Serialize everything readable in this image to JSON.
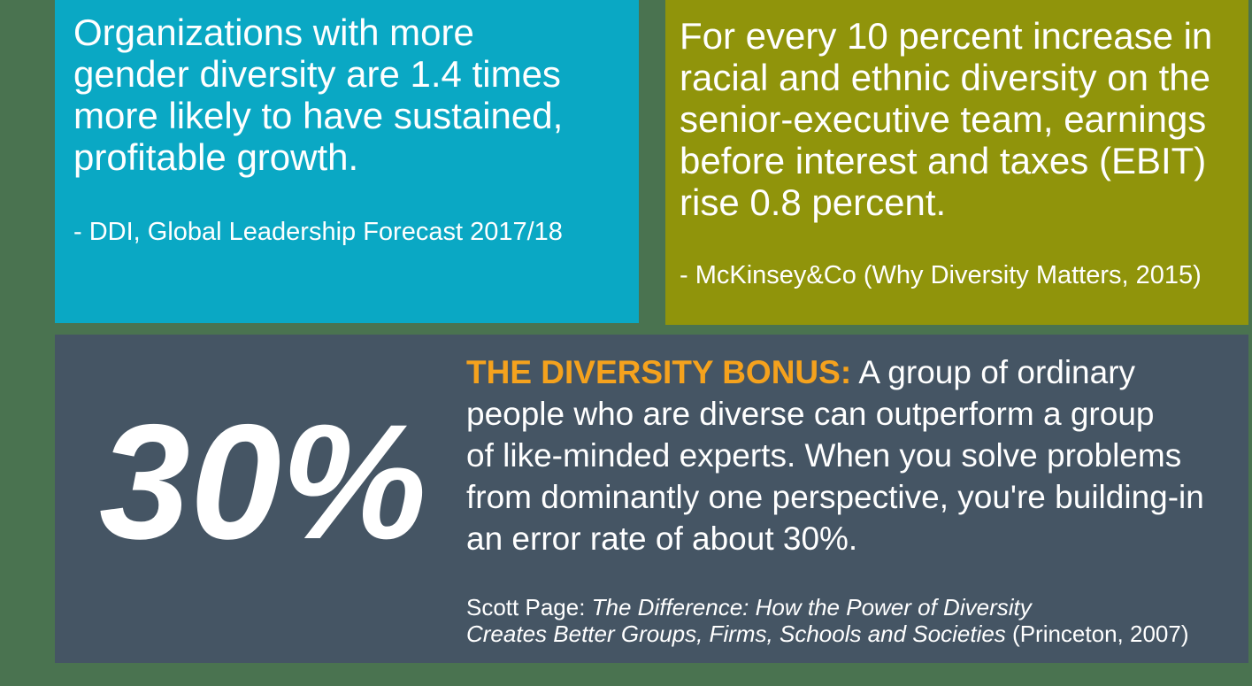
{
  "colors": {
    "background": "#4A7350",
    "teal": "#0AA8C4",
    "olive": "#90940B",
    "slate": "#455564",
    "orange": "#F5A21D",
    "text": "#FFFFFF"
  },
  "teal_card": {
    "quote": "Organizations with more\ngender diversity are 1.4 times\nmore likely to have sustained,\nprofitable growth.",
    "attribution": "- DDI, Global Leadership Forecast 2017/18"
  },
  "olive_card": {
    "quote": "For every 10 percent increase in\nracial and ethnic diversity on the\nsenior-executive team, earnings\nbefore interest and taxes (EBIT)\nrise 0.8 percent.",
    "attribution": "- McKinsey&Co (Why Diversity Matters, 2015)"
  },
  "slate_card": {
    "statistic": "30%",
    "heading": "THE DIVERSITY BONUS:",
    "body": " A group of ordinary\npeople who are diverse can outperform a group\nof like-minded experts. When you solve problems\nfrom dominantly one perspective, you're building-in\nan error rate of about 30%.",
    "citation_prefix": "Scott Page: ",
    "citation_title": "The Difference: How the Power of Diversity\nCreates Better Groups, Firms, Schools and Societies",
    "citation_suffix": " (Princeton, 2007)"
  }
}
